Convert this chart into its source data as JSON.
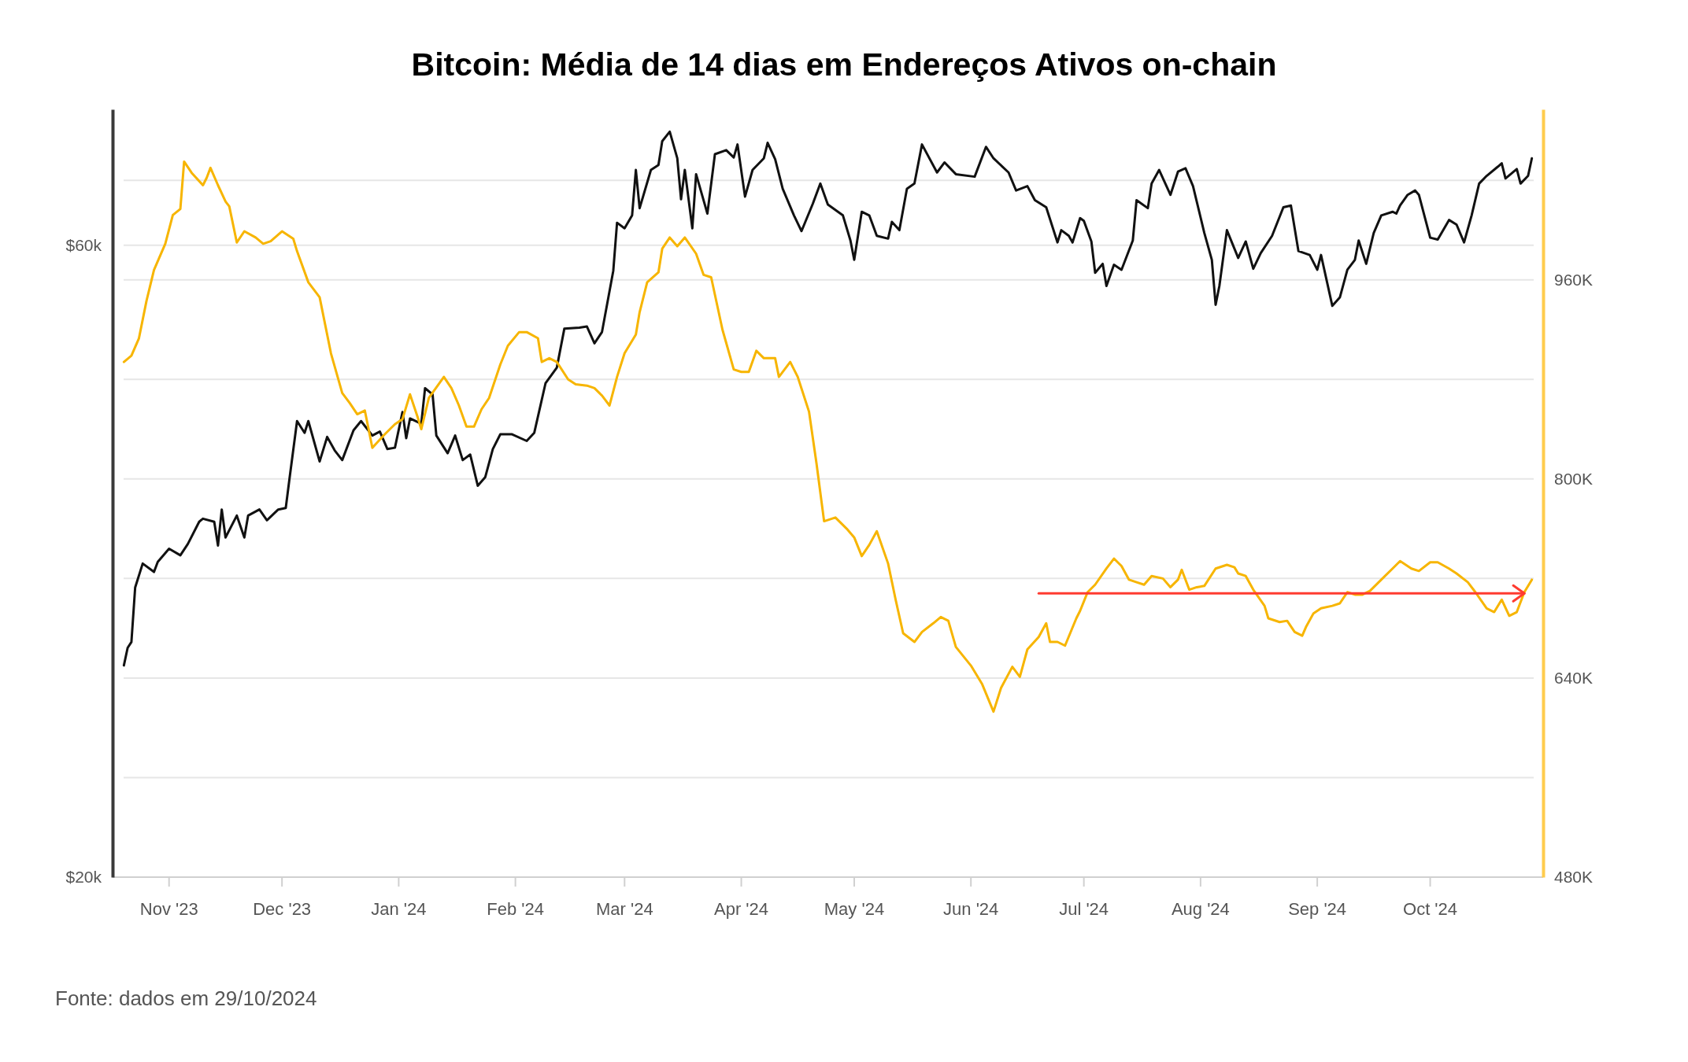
{
  "chart_data": {
    "type": "line",
    "title": "Bitcoin: Média de 14 dias em Endereços Ativos on-chain",
    "annotations": [
      "Fonte: dados em 29/10/2024"
    ],
    "xlim": [
      "2023-10-17",
      "2024-10-31"
    ],
    "xticks": [
      {
        "value": "2023-11-01",
        "label": "Nov '23"
      },
      {
        "value": "2023-12-01",
        "label": "Dec '23"
      },
      {
        "value": "2024-01-01",
        "label": "Jan '24"
      },
      {
        "value": "2024-02-01",
        "label": "Feb '24"
      },
      {
        "value": "2024-03-01",
        "label": "Mar '24"
      },
      {
        "value": "2024-04-01",
        "label": "Apr '24"
      },
      {
        "value": "2024-05-01",
        "label": "May '24"
      },
      {
        "value": "2024-06-01",
        "label": "Jun '24"
      },
      {
        "value": "2024-07-01",
        "label": "Jul '24"
      },
      {
        "value": "2024-08-01",
        "label": "Aug '24"
      },
      {
        "value": "2024-09-01",
        "label": "Sep '24"
      },
      {
        "value": "2024-10-01",
        "label": "Oct '24"
      }
    ],
    "log": "y",
    "ylim": [
      20,
      76
    ],
    "yticks": [
      {
        "value": 20,
        "label": "$20k"
      },
      {
        "value": 60,
        "label": "$60k"
      }
    ],
    "y2lim": [
      480,
      1097
    ],
    "y2ticks": [
      {
        "value": 480,
        "label": "480K"
      },
      {
        "value": 560,
        "label": null
      },
      {
        "value": 640,
        "label": "640K"
      },
      {
        "value": 720,
        "label": null
      },
      {
        "value": 800,
        "label": "800K"
      },
      {
        "value": 880,
        "label": null
      },
      {
        "value": 960,
        "label": "960K"
      },
      {
        "value": 1040,
        "label": null
      }
    ],
    "grid": "y",
    "series": [
      {
        "color": "#111111",
        "x": [
          "2023-10-20",
          "2023-10-21",
          "2023-10-22",
          "2023-10-23",
          "2023-10-25",
          "2023-10-28",
          "2023-10-29",
          "2023-11-01",
          "2023-11-04",
          "2023-11-06",
          "2023-11-09",
          "2023-11-10",
          "2023-11-13",
          "2023-11-14",
          "2023-11-15",
          "2023-11-16",
          "2023-11-19",
          "2023-11-21",
          "2023-11-22",
          "2023-11-25",
          "2023-11-27",
          "2023-11-30",
          "2023-12-02",
          "2023-12-03",
          "2023-12-05",
          "2023-12-07",
          "2023-12-08",
          "2023-12-11",
          "2023-12-13",
          "2023-12-15",
          "2023-12-17",
          "2023-12-20",
          "2023-12-22",
          "2023-12-25",
          "2023-12-27",
          "2023-12-29",
          "2023-12-31",
          "2024-01-02",
          "2024-01-03",
          "2024-01-04",
          "2024-01-07",
          "2024-01-08",
          "2024-01-10",
          "2024-01-11",
          "2024-01-14",
          "2024-01-16",
          "2024-01-18",
          "2024-01-20",
          "2024-01-22",
          "2024-01-24",
          "2024-01-26",
          "2024-01-28",
          "2024-01-31",
          "2024-02-04",
          "2024-02-06",
          "2024-02-09",
          "2024-02-12",
          "2024-02-14",
          "2024-02-18",
          "2024-02-20",
          "2024-02-22",
          "2024-02-24",
          "2024-02-27",
          "2024-02-28",
          "2024-03-01",
          "2024-03-03",
          "2024-03-04",
          "2024-03-05",
          "2024-03-08",
          "2024-03-10",
          "2024-03-11",
          "2024-03-13",
          "2024-03-15",
          "2024-03-16",
          "2024-03-17",
          "2024-03-19",
          "2024-03-20",
          "2024-03-23",
          "2024-03-25",
          "2024-03-28",
          "2024-03-30",
          "2024-03-31",
          "2024-04-02",
          "2024-04-04",
          "2024-04-07",
          "2024-04-08",
          "2024-04-10",
          "2024-04-12",
          "2024-04-15",
          "2024-04-17",
          "2024-04-20",
          "2024-04-22",
          "2024-04-24",
          "2024-04-28",
          "2024-04-30",
          "2024-05-01",
          "2024-05-03",
          "2024-05-05",
          "2024-05-07",
          "2024-05-10",
          "2024-05-11",
          "2024-05-13",
          "2024-05-15",
          "2024-05-17",
          "2024-05-19",
          "2024-05-23",
          "2024-05-25",
          "2024-05-28",
          "2024-06-02",
          "2024-06-05",
          "2024-06-07",
          "2024-06-11",
          "2024-06-13",
          "2024-06-16",
          "2024-06-18",
          "2024-06-21",
          "2024-06-24",
          "2024-06-25",
          "2024-06-27",
          "2024-06-28",
          "2024-06-30",
          "2024-07-01",
          "2024-07-03",
          "2024-07-04",
          "2024-07-06",
          "2024-07-07",
          "2024-07-09",
          "2024-07-11",
          "2024-07-14",
          "2024-07-15",
          "2024-07-18",
          "2024-07-19",
          "2024-07-21",
          "2024-07-24",
          "2024-07-26",
          "2024-07-28",
          "2024-07-30",
          "2024-08-02",
          "2024-08-04",
          "2024-08-05",
          "2024-08-06",
          "2024-08-08",
          "2024-08-11",
          "2024-08-13",
          "2024-08-15",
          "2024-08-17",
          "2024-08-20",
          "2024-08-23",
          "2024-08-25",
          "2024-08-27",
          "2024-08-30",
          "2024-09-01",
          "2024-09-02",
          "2024-09-05",
          "2024-09-07",
          "2024-09-09",
          "2024-09-11",
          "2024-09-12",
          "2024-09-14",
          "2024-09-16",
          "2024-09-18",
          "2024-09-21",
          "2024-09-22",
          "2024-09-23",
          "2024-09-25",
          "2024-09-27",
          "2024-09-28",
          "2024-10-01",
          "2024-10-03",
          "2024-10-06",
          "2024-10-08",
          "2024-10-10",
          "2024-10-12",
          "2024-10-14",
          "2024-10-16",
          "2024-10-19",
          "2024-10-20",
          "2024-10-21",
          "2024-10-24",
          "2024-10-25",
          "2024-10-27",
          "2024-10-28"
        ],
        "values": [
          28.9,
          29.8,
          30.1,
          33.1,
          34.5,
          34.0,
          34.6,
          35.4,
          35.0,
          35.7,
          37.1,
          37.3,
          37.1,
          35.6,
          37.9,
          36.1,
          37.5,
          36.1,
          37.5,
          37.9,
          37.2,
          37.9,
          38.0,
          40.0,
          44.2,
          43.3,
          44.2,
          41.2,
          43.0,
          42.0,
          41.3,
          43.5,
          44.2,
          43.1,
          43.4,
          42.1,
          42.2,
          44.9,
          42.9,
          44.4,
          44.0,
          46.8,
          46.3,
          43.1,
          41.8,
          43.1,
          41.3,
          41.7,
          39.5,
          40.1,
          42.1,
          43.2,
          43.2,
          42.7,
          43.3,
          47.2,
          48.5,
          51.9,
          52.0,
          52.1,
          50.6,
          51.6,
          57.4,
          62.4,
          61.8,
          63.2,
          68.4,
          64.0,
          68.4,
          69.0,
          71.9,
          73.1,
          69.8,
          65.0,
          68.4,
          61.8,
          67.9,
          63.4,
          70.3,
          70.8,
          69.9,
          71.5,
          65.3,
          68.4,
          69.8,
          71.7,
          69.7,
          66.2,
          63.2,
          61.5,
          64.5,
          66.8,
          64.4,
          63.2,
          60.5,
          58.5,
          63.6,
          63.2,
          61.0,
          60.7,
          62.5,
          61.6,
          66.2,
          66.8,
          71.5,
          68.1,
          69.3,
          67.9,
          67.6,
          71.2,
          69.8,
          68.1,
          66.0,
          66.5,
          64.9,
          64.1,
          60.3,
          61.6,
          61.0,
          60.3,
          62.9,
          62.6,
          60.4,
          57.2,
          58.1,
          55.9,
          58.0,
          57.5,
          60.5,
          64.9,
          64.0,
          66.8,
          68.4,
          65.5,
          68.2,
          68.6,
          66.5,
          61.3,
          58.5,
          54.1,
          55.9,
          61.6,
          58.7,
          60.4,
          57.6,
          59.2,
          61.0,
          64.1,
          64.3,
          59.4,
          59.0,
          57.5,
          59.0,
          54.0,
          54.8,
          57.5,
          58.5,
          60.5,
          58.1,
          61.3,
          63.2,
          63.6,
          63.4,
          64.3,
          65.5,
          66.0,
          65.5,
          60.8,
          60.6,
          62.7,
          62.2,
          60.3,
          63.2,
          66.8,
          67.7,
          68.8,
          69.2,
          67.4,
          68.5,
          66.8,
          67.7,
          69.8
        ]
      },
      {
        "color": "#f7b500",
        "axis": "y2",
        "x": [
          "2023-10-20",
          "2023-10-22",
          "2023-10-24",
          "2023-10-26",
          "2023-10-28",
          "2023-10-31",
          "2023-11-02",
          "2023-11-04",
          "2023-11-05",
          "2023-11-07",
          "2023-11-10",
          "2023-11-11",
          "2023-11-12",
          "2023-11-14",
          "2023-11-16",
          "2023-11-17",
          "2023-11-19",
          "2023-11-21",
          "2023-11-24",
          "2023-11-26",
          "2023-11-28",
          "2023-12-01",
          "2023-12-04",
          "2023-12-05",
          "2023-12-08",
          "2023-12-11",
          "2023-12-12",
          "2023-12-14",
          "2023-12-17",
          "2023-12-19",
          "2023-12-21",
          "2023-12-23",
          "2023-12-25",
          "2023-12-28",
          "2023-12-31",
          "2024-01-02",
          "2024-01-04",
          "2024-01-06",
          "2024-01-07",
          "2024-01-09",
          "2024-01-13",
          "2024-01-15",
          "2024-01-17",
          "2024-01-19",
          "2024-01-21",
          "2024-01-23",
          "2024-01-25",
          "2024-01-28",
          "2024-01-30",
          "2024-02-02",
          "2024-02-04",
          "2024-02-07",
          "2024-02-08",
          "2024-02-10",
          "2024-02-12",
          "2024-02-15",
          "2024-02-17",
          "2024-02-20",
          "2024-02-22",
          "2024-02-24",
          "2024-02-26",
          "2024-02-28",
          "2024-03-01",
          "2024-03-04",
          "2024-03-05",
          "2024-03-07",
          "2024-03-10",
          "2024-03-11",
          "2024-03-13",
          "2024-03-15",
          "2024-03-17",
          "2024-03-20",
          "2024-03-22",
          "2024-03-24",
          "2024-03-27",
          "2024-03-30",
          "2024-04-01",
          "2024-04-03",
          "2024-04-05",
          "2024-04-07",
          "2024-04-10",
          "2024-04-11",
          "2024-04-14",
          "2024-04-16",
          "2024-04-19",
          "2024-04-21",
          "2024-04-23",
          "2024-04-26",
          "2024-04-29",
          "2024-05-01",
          "2024-05-03",
          "2024-05-05",
          "2024-05-07",
          "2024-05-10",
          "2024-05-12",
          "2024-05-14",
          "2024-05-17",
          "2024-05-19",
          "2024-05-22",
          "2024-05-24",
          "2024-05-26",
          "2024-05-28",
          "2024-06-01",
          "2024-06-04",
          "2024-06-07",
          "2024-06-09",
          "2024-06-12",
          "2024-06-14",
          "2024-06-16",
          "2024-06-19",
          "2024-06-21",
          "2024-06-22",
          "2024-06-24",
          "2024-06-26",
          "2024-06-29",
          "2024-06-30",
          "2024-07-02",
          "2024-07-04",
          "2024-07-07",
          "2024-07-09",
          "2024-07-11",
          "2024-07-13",
          "2024-07-15",
          "2024-07-17",
          "2024-07-19",
          "2024-07-22",
          "2024-07-24",
          "2024-07-26",
          "2024-07-27",
          "2024-07-29",
          "2024-07-31",
          "2024-08-02",
          "2024-08-05",
          "2024-08-08",
          "2024-08-10",
          "2024-08-11",
          "2024-08-13",
          "2024-08-15",
          "2024-08-18",
          "2024-08-19",
          "2024-08-22",
          "2024-08-24",
          "2024-08-26",
          "2024-08-28",
          "2024-08-29",
          "2024-08-31",
          "2024-09-02",
          "2024-09-05",
          "2024-09-07",
          "2024-09-09",
          "2024-09-11",
          "2024-09-13",
          "2024-09-15",
          "2024-09-18",
          "2024-09-21",
          "2024-09-23",
          "2024-09-26",
          "2024-09-28",
          "2024-10-01",
          "2024-10-03",
          "2024-10-06",
          "2024-10-08",
          "2024-10-11",
          "2024-10-13",
          "2024-10-16",
          "2024-10-18",
          "2024-10-20",
          "2024-10-22",
          "2024-10-24",
          "2024-10-26",
          "2024-10-28"
        ],
        "values": [
          894,
          899,
          913,
          943,
          968,
          989,
          1012,
          1017,
          1055,
          1046,
          1036,
          1042,
          1050,
          1036,
          1023,
          1019,
          990,
          999,
          994,
          989,
          991,
          999,
          993,
          983,
          958,
          946,
          931,
          901,
          869,
          861,
          852,
          855,
          825,
          835,
          844,
          848,
          868,
          850,
          840,
          865,
          882,
          873,
          859,
          842,
          842,
          856,
          865,
          892,
          907,
          918,
          918,
          913,
          894,
          897,
          894,
          880,
          876,
          875,
          873,
          867,
          859,
          882,
          901,
          916,
          934,
          958,
          966,
          985,
          994,
          987,
          994,
          981,
          964,
          962,
          920,
          888,
          886,
          886,
          903,
          897,
          897,
          882,
          894,
          882,
          854,
          812,
          766,
          769,
          760,
          753,
          738,
          747,
          758,
          732,
          703,
          676,
          669,
          677,
          684,
          689,
          686,
          665,
          650,
          635,
          613,
          632,
          649,
          641,
          663,
          673,
          684,
          669,
          669,
          666,
          688,
          694,
          709,
          715,
          728,
          736,
          730,
          719,
          717,
          715,
          722,
          720,
          713,
          719,
          727,
          711,
          713,
          714,
          728,
          731,
          729,
          724,
          722,
          711,
          698,
          688,
          685,
          686,
          677,
          674,
          681,
          692,
          696,
          698,
          700,
          709,
          707,
          707,
          710,
          719,
          728,
          734,
          728,
          726,
          733,
          733,
          728,
          724,
          717,
          709,
          696,
          693,
          703,
          690,
          693,
          709,
          719
        ]
      },
      {
        "color": "#ff3b30",
        "axis": "y2",
        "x": [
          "2024-06-19",
          "2024-10-26"
        ],
        "values": [
          708,
          708
        ]
      }
    ]
  }
}
